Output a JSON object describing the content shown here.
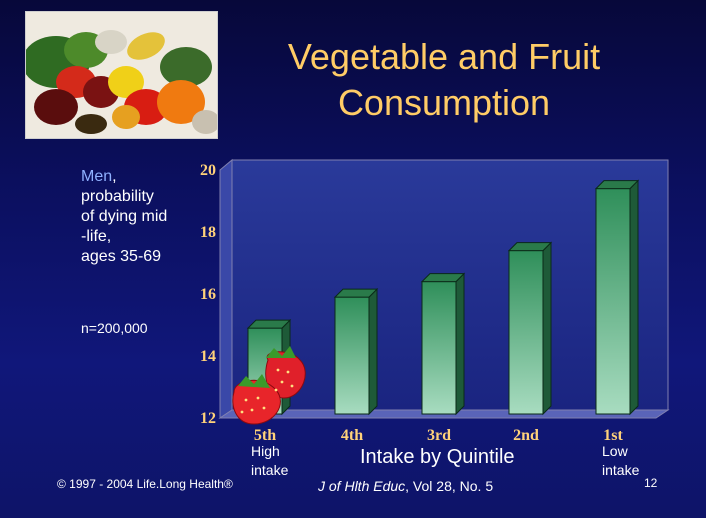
{
  "title_line1": "Vegetable and Fruit",
  "title_line2": "Consumption",
  "side_label": {
    "men": "Men",
    "comma": ",",
    "lines": [
      "probability",
      "of dying mid",
      "-life,",
      "ages 35-69"
    ]
  },
  "n_label": "n=200,000",
  "sub_high": [
    "High",
    "intake"
  ],
  "sub_low": [
    "Low",
    "intake"
  ],
  "copyright": "© 1997 - 2004 Life.Long Health®",
  "citation_journal": "J of Hlth Educ",
  "citation_rest": ", Vol 28, No. 5",
  "page_number": "12",
  "images": [
    "vegetables-photo",
    "strawberries"
  ],
  "colors": {
    "title": "#ffcc66",
    "tick": "#ffd27a",
    "bar_top": "#2f8f5a",
    "bar_bottom": "#a8dcc0"
  },
  "chart_data": {
    "type": "bar",
    "title": "",
    "xlabel": "Intake by Quintile",
    "ylabel": "",
    "categories": [
      "5th",
      "4th",
      "3rd",
      "2nd",
      "1st"
    ],
    "values": [
      14.9,
      15.9,
      16.4,
      17.4,
      19.4
    ],
    "ylim": [
      12,
      20
    ],
    "yticks": [
      12,
      14,
      16,
      18,
      20
    ],
    "grid": false,
    "three_d": true
  }
}
